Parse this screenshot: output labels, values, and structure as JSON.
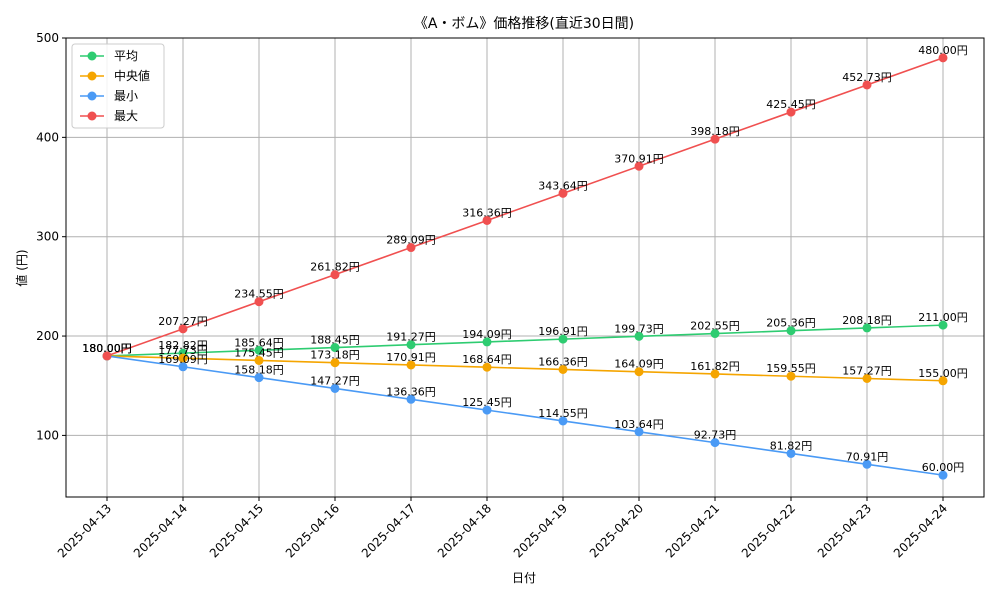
{
  "chart_data": {
    "type": "line",
    "title": "《A・ボム》価格推移(直近30日間)",
    "xlabel": "日付",
    "ylabel": "値 (円)",
    "ylim": [
      38,
      500
    ],
    "yticks": [
      100,
      200,
      300,
      400,
      500
    ],
    "grid": true,
    "legend_position": "top-left",
    "label_suffix": "円",
    "x": [
      "2025-04-13",
      "2025-04-14",
      "2025-04-15",
      "2025-04-16",
      "2025-04-17",
      "2025-04-18",
      "2025-04-19",
      "2025-04-20",
      "2025-04-21",
      "2025-04-22",
      "2025-04-23",
      "2025-04-24"
    ],
    "series": [
      {
        "name": "平均",
        "color": "#2ecc71",
        "values": [
          180.0,
          182.82,
          185.64,
          188.45,
          191.27,
          194.09,
          196.91,
          199.73,
          202.55,
          205.36,
          208.18,
          211.0
        ]
      },
      {
        "name": "中央値",
        "color": "#f5a500",
        "values": [
          180.0,
          177.73,
          175.45,
          173.18,
          170.91,
          168.64,
          166.36,
          164.09,
          161.82,
          159.55,
          157.27,
          155.0
        ]
      },
      {
        "name": "最小",
        "color": "#4a9af5",
        "values": [
          180.0,
          169.09,
          158.18,
          147.27,
          136.36,
          125.45,
          114.55,
          103.64,
          92.73,
          81.82,
          70.91,
          60.0
        ]
      },
      {
        "name": "最大",
        "color": "#f05050",
        "values": [
          180.0,
          207.27,
          234.55,
          261.82,
          289.09,
          316.36,
          343.64,
          370.91,
          398.18,
          425.45,
          452.73,
          480.0
        ]
      }
    ]
  }
}
